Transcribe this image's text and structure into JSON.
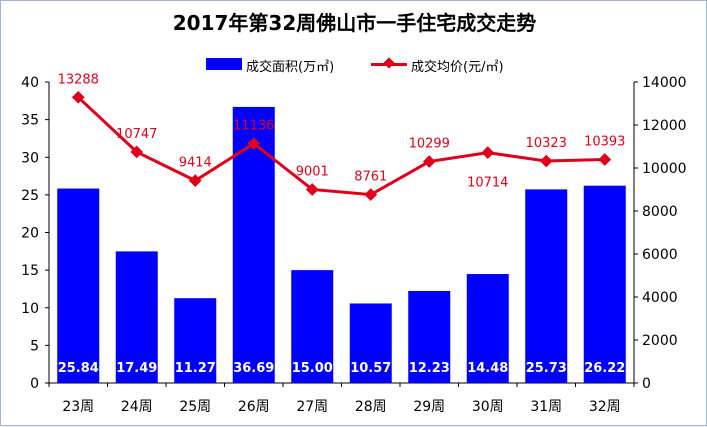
{
  "chart_data": {
    "type": "bar+line",
    "title": "2017年第32周佛山市一手住宅成交走势",
    "categories": [
      "23周",
      "24周",
      "25周",
      "26周",
      "27周",
      "28周",
      "29周",
      "30周",
      "31周",
      "32周"
    ],
    "series": [
      {
        "name": "成交面积(万㎡)",
        "type": "bar",
        "axis": "left",
        "color": "#0000ff",
        "values": [
          25.84,
          17.49,
          11.27,
          36.69,
          15.0,
          10.57,
          12.23,
          14.48,
          25.73,
          26.22
        ],
        "labels": [
          "25.84",
          "17.49",
          "11.27",
          "36.69",
          "15.00",
          "10.57",
          "12.23",
          "14.48",
          "25.73",
          "26.22"
        ]
      },
      {
        "name": "成交均价(元/㎡)",
        "type": "line",
        "axis": "right",
        "color": "#e0001a",
        "values": [
          13288,
          10747,
          9414,
          11136,
          9001,
          8761,
          10299,
          10714,
          10323,
          10393
        ],
        "labels": [
          "13288",
          "10747",
          "9414",
          "11136",
          "9001",
          "8761",
          "10299",
          "10714",
          "10323",
          "10393"
        ]
      }
    ],
    "y_left": {
      "ylim": [
        0,
        40
      ],
      "ticks": [
        0,
        5,
        10,
        15,
        20,
        25,
        30,
        35,
        40
      ]
    },
    "y_right": {
      "ylim": [
        0,
        14000
      ],
      "ticks": [
        0,
        2000,
        4000,
        6000,
        8000,
        10000,
        12000,
        14000
      ]
    },
    "grid": false,
    "legend": "top-center"
  }
}
